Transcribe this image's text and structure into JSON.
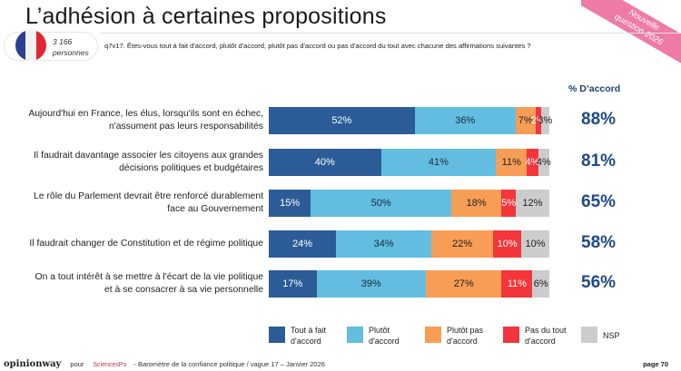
{
  "header": {
    "title": "L’adhésion à certaines propositions",
    "ribbon": [
      "Nouvelle",
      "question 2026"
    ],
    "sample_size": "3 166",
    "sample_unit": "personnes",
    "question": "q7v17. Êtes-vous tout à fait d'accord, plutôt d'accord, plutôt pas d'accord ou pas d'accord du tout avec chacune des affirmations suivantes ?",
    "flag_colors": [
      "#2a3f8f",
      "#f2f2f2",
      "#e0262e"
    ]
  },
  "chart_data": {
    "type": "bar",
    "orientation": "horizontal",
    "stacked": true,
    "title": "L’adhésion à certaines propositions",
    "xlabel": "",
    "ylabel": "",
    "xlim": [
      0,
      100
    ],
    "grid": false,
    "legend_position": "bottom",
    "categories": [
      "Aujourd'hui en France, les élus, lorsqu'ils sont en échec, n'assument pas leurs responsabilités",
      "Il faudrait davantage associer les citoyens aux grandes décisions politiques et budgétaires",
      "Le rôle du Parlement devrait être renforcé durablement face au Gouvernement",
      "Il faudrait changer de Constitution et de régime politique",
      "On a tout intérêt à se mettre à l'écart de la vie politique et à se consacrer à sa vie personnelle"
    ],
    "category_lines": [
      [
        "Aujourd'hui en France, les élus, lorsqu'ils sont en échec,",
        "n'assument pas leurs responsabilités"
      ],
      [
        "Il faudrait davantage associer les citoyens aux grandes",
        "décisions politiques et budgétaires"
      ],
      [
        "Le rôle du Parlement devrait être renforcé durablement",
        "face au Gouvernement"
      ],
      [
        "Il faudrait changer de Constitution et de régime politique"
      ],
      [
        "On a tout intérêt à se mettre à l'écart de la vie politique",
        "et à se consacrer à sa vie personnelle"
      ]
    ],
    "series": [
      {
        "name": "Tout à fait d'accord",
        "legend_lines": [
          "Tout à fait",
          "d'accord"
        ],
        "color": "#2b5c97",
        "label_color": "#ffffff",
        "values": [
          52,
          40,
          15,
          24,
          17
        ]
      },
      {
        "name": "Plutôt d'accord",
        "legend_lines": [
          "Plutôt",
          "d'accord"
        ],
        "color": "#62bde0",
        "label_color": "#1a2a3a",
        "values": [
          36,
          41,
          50,
          34,
          39
        ]
      },
      {
        "name": "Plutôt pas d'accord",
        "legend_lines": [
          "Plutôt pas",
          "d'accord"
        ],
        "color": "#f89d55",
        "label_color": "#222222",
        "values": [
          7,
          11,
          18,
          22,
          27
        ]
      },
      {
        "name": "Pas du tout d'accord",
        "legend_lines": [
          "Pas du tout",
          "d'accord"
        ],
        "color": "#f2363b",
        "label_color": "#ffffff",
        "values": [
          2,
          4,
          5,
          10,
          11
        ]
      },
      {
        "name": "NSP",
        "legend_lines": [
          "NSP"
        ],
        "color": "#cccccc",
        "label_color": "#222222",
        "values": [
          3,
          4,
          12,
          10,
          6
        ]
      }
    ],
    "agree_header": "% D’accord",
    "agree_totals": [
      "88%",
      "81%",
      "65%",
      "58%",
      "56%"
    ]
  },
  "footer": {
    "brand": "opinionway",
    "pour": "pour",
    "partner": "SciencesPo",
    "source": "- Baromètre de la confiance politique / vague 17 – Janvier 2026",
    "page": "page 70"
  }
}
